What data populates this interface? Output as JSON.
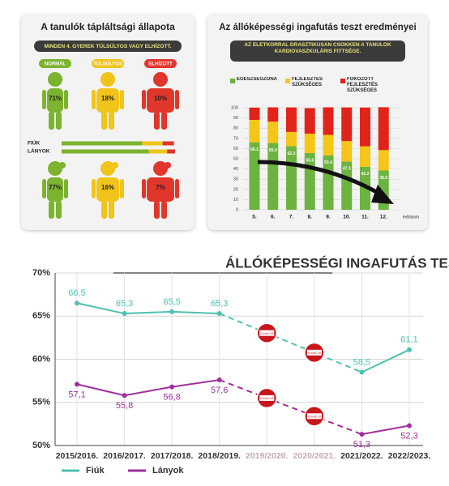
{
  "chart_data": [
    {
      "type": "pictogram",
      "title": "A tanulók tápláltsági állapota",
      "subtitle": "MINDEN 4. GYEREK TÚLSÚLYOS VAGY ELHÍZOTT.",
      "categories": [
        "NORMÁL",
        "TÚLSÚLYOS",
        "ELHÍZOTT"
      ],
      "colors": [
        "#7cb32f",
        "#f0c419",
        "#e0362c"
      ],
      "series": [
        {
          "name": "FIÚK",
          "values": [
            71,
            18,
            10
          ],
          "value_labels": [
            "71%",
            "18%",
            "10%"
          ]
        },
        {
          "name": "LÁNYOK",
          "values": [
            77,
            16,
            7
          ],
          "value_labels": [
            "77%",
            "16%",
            "7%"
          ]
        }
      ]
    },
    {
      "type": "stacked-bar",
      "title": "Az állóképességi ingafutás teszt eredményei",
      "subtitle": "AZ ÉLETKORRAL DRASZTIKUSAN CSÖKKEN A TANULÓK KARDIOVASZKULÁRIS FITTSÉGE.",
      "categories": [
        "5.",
        "6.",
        "7.",
        "8.",
        "9.",
        "10.",
        "11.",
        "12."
      ],
      "xlabel": "évfolyam",
      "series": [
        {
          "name": "EGÉSZSÉGZÓNA",
          "color": "#6db33f",
          "data_labels": true,
          "values": [
            66.1,
            65.4,
            62.3,
            55.6,
            53.4,
            47.3,
            42.2,
            38.5
          ]
        },
        {
          "name": "FEJLESZTÉS SZÜKSÉGES",
          "color": "#f5c518",
          "values": [
            22,
            21,
            14,
            19,
            20,
            20,
            20,
            20
          ]
        },
        {
          "name": "FOKOZOTT FEJLESZTÉS SZÜKSÉGES",
          "color": "#e2231a",
          "values": [
            12,
            14,
            24,
            25,
            27,
            33,
            38,
            42
          ]
        }
      ],
      "ylim": [
        0,
        100
      ],
      "yticks": [
        0,
        10,
        20,
        30,
        40,
        50,
        60,
        70,
        80,
        90,
        100
      ],
      "grid": true
    },
    {
      "type": "line",
      "title": "ÁLLÓKÉPESSÉGI INGAFUTÁS TESZT",
      "categories": [
        "2015/2016.",
        "2016/2017.",
        "2017/2018.",
        "2018/2019.",
        "2019/2020.",
        "2020/2021.",
        "2021/2022.",
        "2022/2023."
      ],
      "series": [
        {
          "name": "Fiúk",
          "color": "#4fc1b0",
          "label_position": "above",
          "values": [
            66.5,
            65.3,
            65.5,
            65.3,
            null,
            null,
            58.5,
            61.1
          ],
          "value_labels": [
            "66,5",
            "65,3",
            "65,5",
            "65,3",
            null,
            null,
            "58,5",
            "61,1"
          ]
        },
        {
          "name": "Lányok",
          "color": "#a0309c",
          "label_position": "below",
          "values": [
            57.1,
            55.8,
            56.8,
            57.6,
            null,
            null,
            51.3,
            52.3
          ],
          "value_labels": [
            "57,1",
            "55,8",
            "56,8",
            "57,6",
            null,
            null,
            "51,3",
            "52,3"
          ]
        }
      ],
      "annotation": "Covid-19",
      "ylim": [
        50,
        70
      ],
      "yticks": [
        {
          "value": 50,
          "label": "50%"
        },
        {
          "value": 55,
          "label": "55%"
        },
        {
          "value": 60,
          "label": "60%"
        },
        {
          "value": 65,
          "label": "65%"
        },
        {
          "value": 70,
          "label": "70%"
        }
      ],
      "grid": true
    }
  ]
}
